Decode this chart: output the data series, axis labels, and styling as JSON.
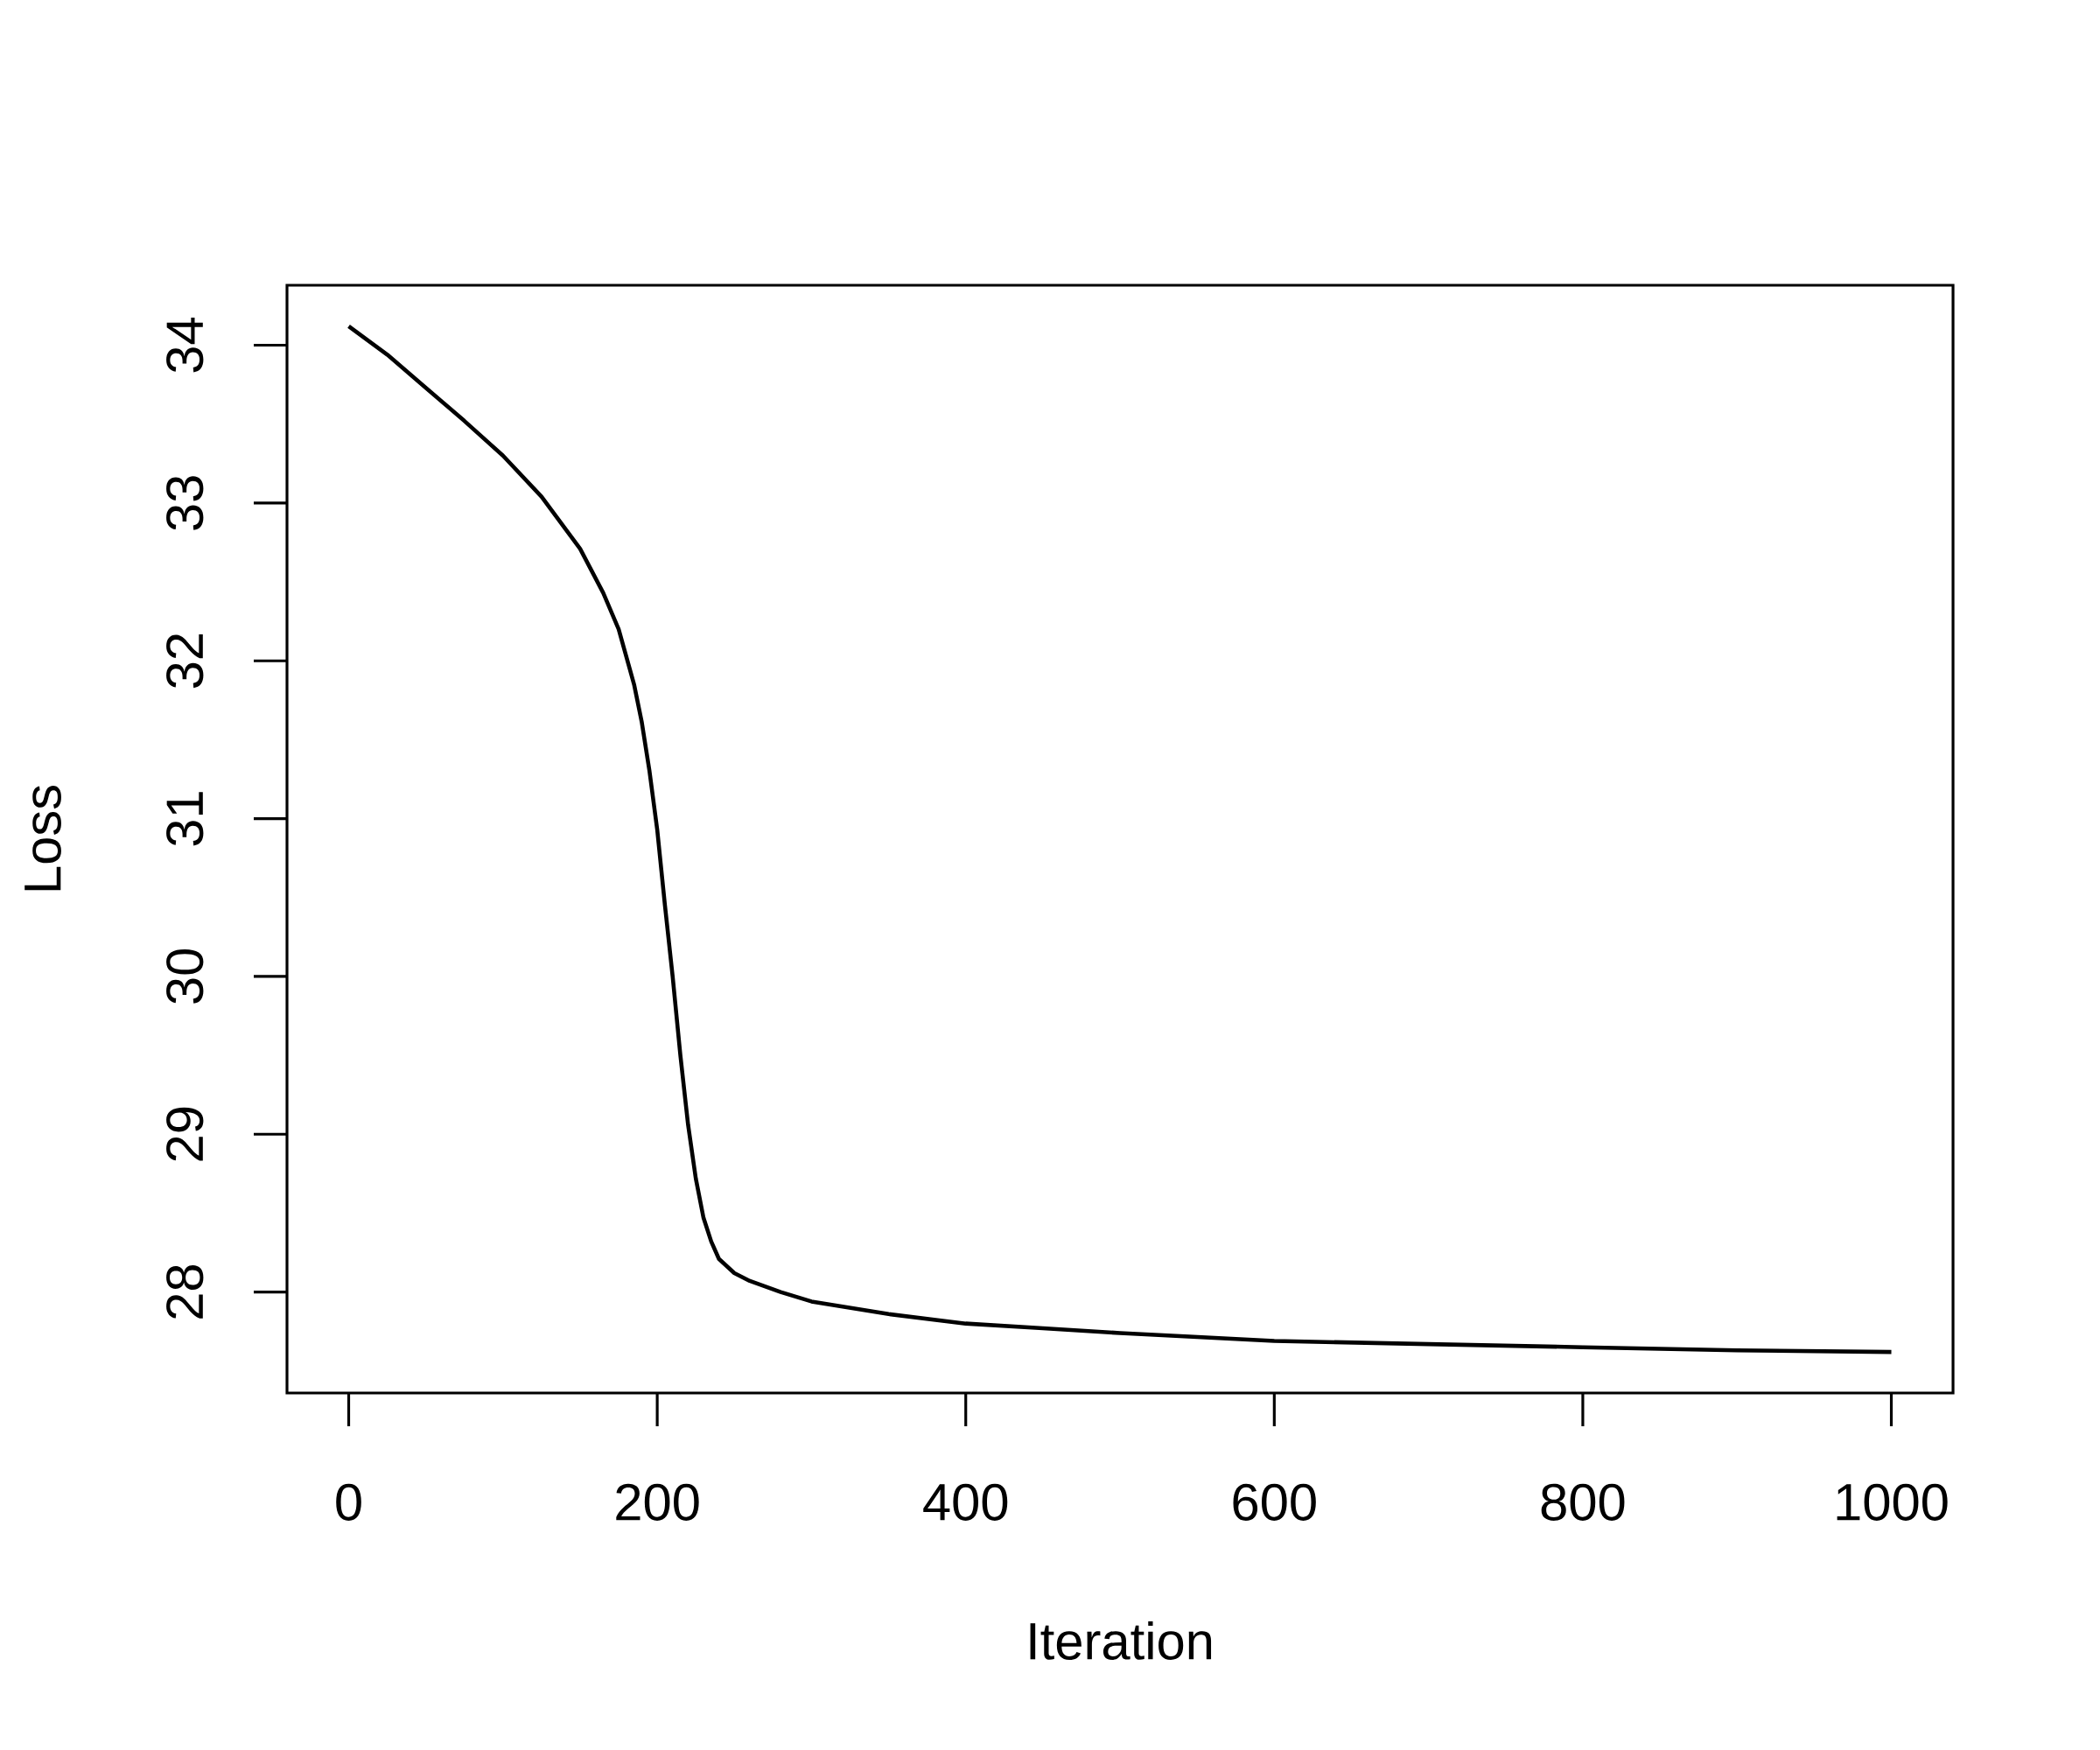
{
  "chart_data": {
    "type": "line",
    "xlabel": "Iteration",
    "ylabel": "Loss",
    "x": [
      0,
      25,
      50,
      75,
      100,
      125,
      150,
      165,
      175,
      185,
      190,
      195,
      200,
      205,
      210,
      215,
      220,
      225,
      230,
      235,
      240,
      250,
      260,
      280,
      300,
      350,
      400,
      450,
      500,
      600,
      700,
      800,
      900,
      1000
    ],
    "series": [
      {
        "color": "#000000",
        "values": [
          34.12,
          33.94,
          33.73,
          33.52,
          33.3,
          33.04,
          32.71,
          32.43,
          32.2,
          31.85,
          31.61,
          31.3,
          30.93,
          30.45,
          30.0,
          29.5,
          29.06,
          28.72,
          28.47,
          28.32,
          28.21,
          28.12,
          28.07,
          28.0,
          27.94,
          27.86,
          27.8,
          27.77,
          27.74,
          27.69,
          27.67,
          27.65,
          27.63,
          27.62
        ]
      }
    ],
    "xlim": [
      -40,
      1040
    ],
    "ylim": [
      27.36,
      34.38
    ],
    "xticks": [
      0,
      200,
      400,
      600,
      800,
      1000
    ],
    "yticks": [
      28,
      29,
      30,
      31,
      32,
      33,
      34
    ],
    "grid": false,
    "marker": "none",
    "line_style": "solid"
  }
}
